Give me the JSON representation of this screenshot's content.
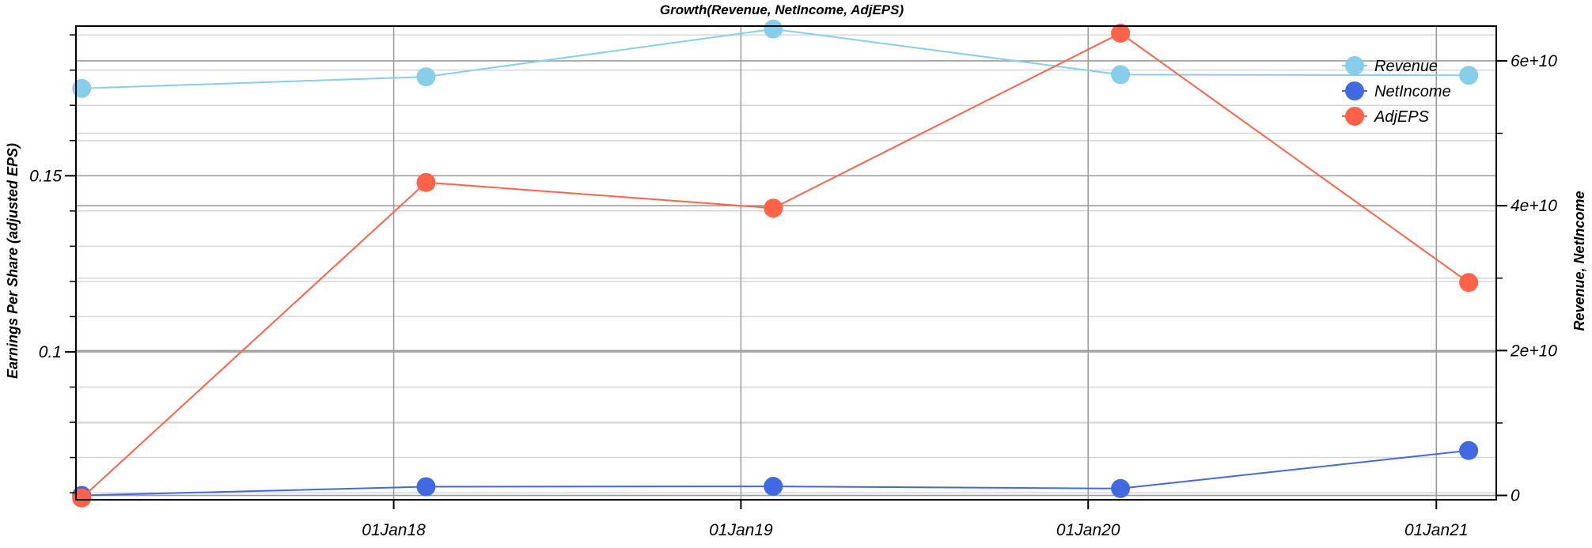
{
  "chart_data": {
    "type": "line",
    "title": "Growth(Revenue, NetIncome, AdjEPS)",
    "x_tick_labels": [
      "01Jan18",
      "01Jan19",
      "01Jan20",
      "01Jan21"
    ],
    "x_ticks": [
      "2018-01-01",
      "2019-01-01",
      "2020-01-01",
      "2021-01-01"
    ],
    "x_range": [
      "2017-02-01",
      "2021-03-05"
    ],
    "x": [
      "2017-02-07",
      "2018-02-04",
      "2019-02-04",
      "2020-02-04",
      "2021-02-04"
    ],
    "left_axis": {
      "label": "Earnings Per Share (adjusted EPS)",
      "range": [
        0.058,
        0.1925
      ],
      "ticks": [
        0.1,
        0.15
      ],
      "tick_labels": [
        "0.1",
        "0.15"
      ]
    },
    "right_axis": {
      "label": "Revenue, NetIncome",
      "range": [
        -600000000,
        64800000000
      ],
      "ticks": [
        0,
        20000000000,
        40000000000,
        60000000000
      ],
      "tick_labels": [
        "0",
        "2e+10",
        "4e+10",
        "6e+10"
      ]
    },
    "series": [
      {
        "name": "Revenue",
        "axis": "right",
        "color": "#87ceeb",
        "values": [
          56200000000,
          57800000000,
          64400000000,
          58100000000,
          58000000000
        ]
      },
      {
        "name": "NetIncome",
        "axis": "right",
        "color": "#4169e1",
        "values": [
          0,
          1200000000,
          1250000000,
          950000000,
          6200000000
        ]
      },
      {
        "name": "AdjEPS",
        "axis": "left",
        "color": "#ff6347",
        "values": [
          0.0585,
          0.1481,
          0.1408,
          0.1905,
          0.1197
        ]
      }
    ],
    "legend_position": "top-right",
    "grid": true
  }
}
